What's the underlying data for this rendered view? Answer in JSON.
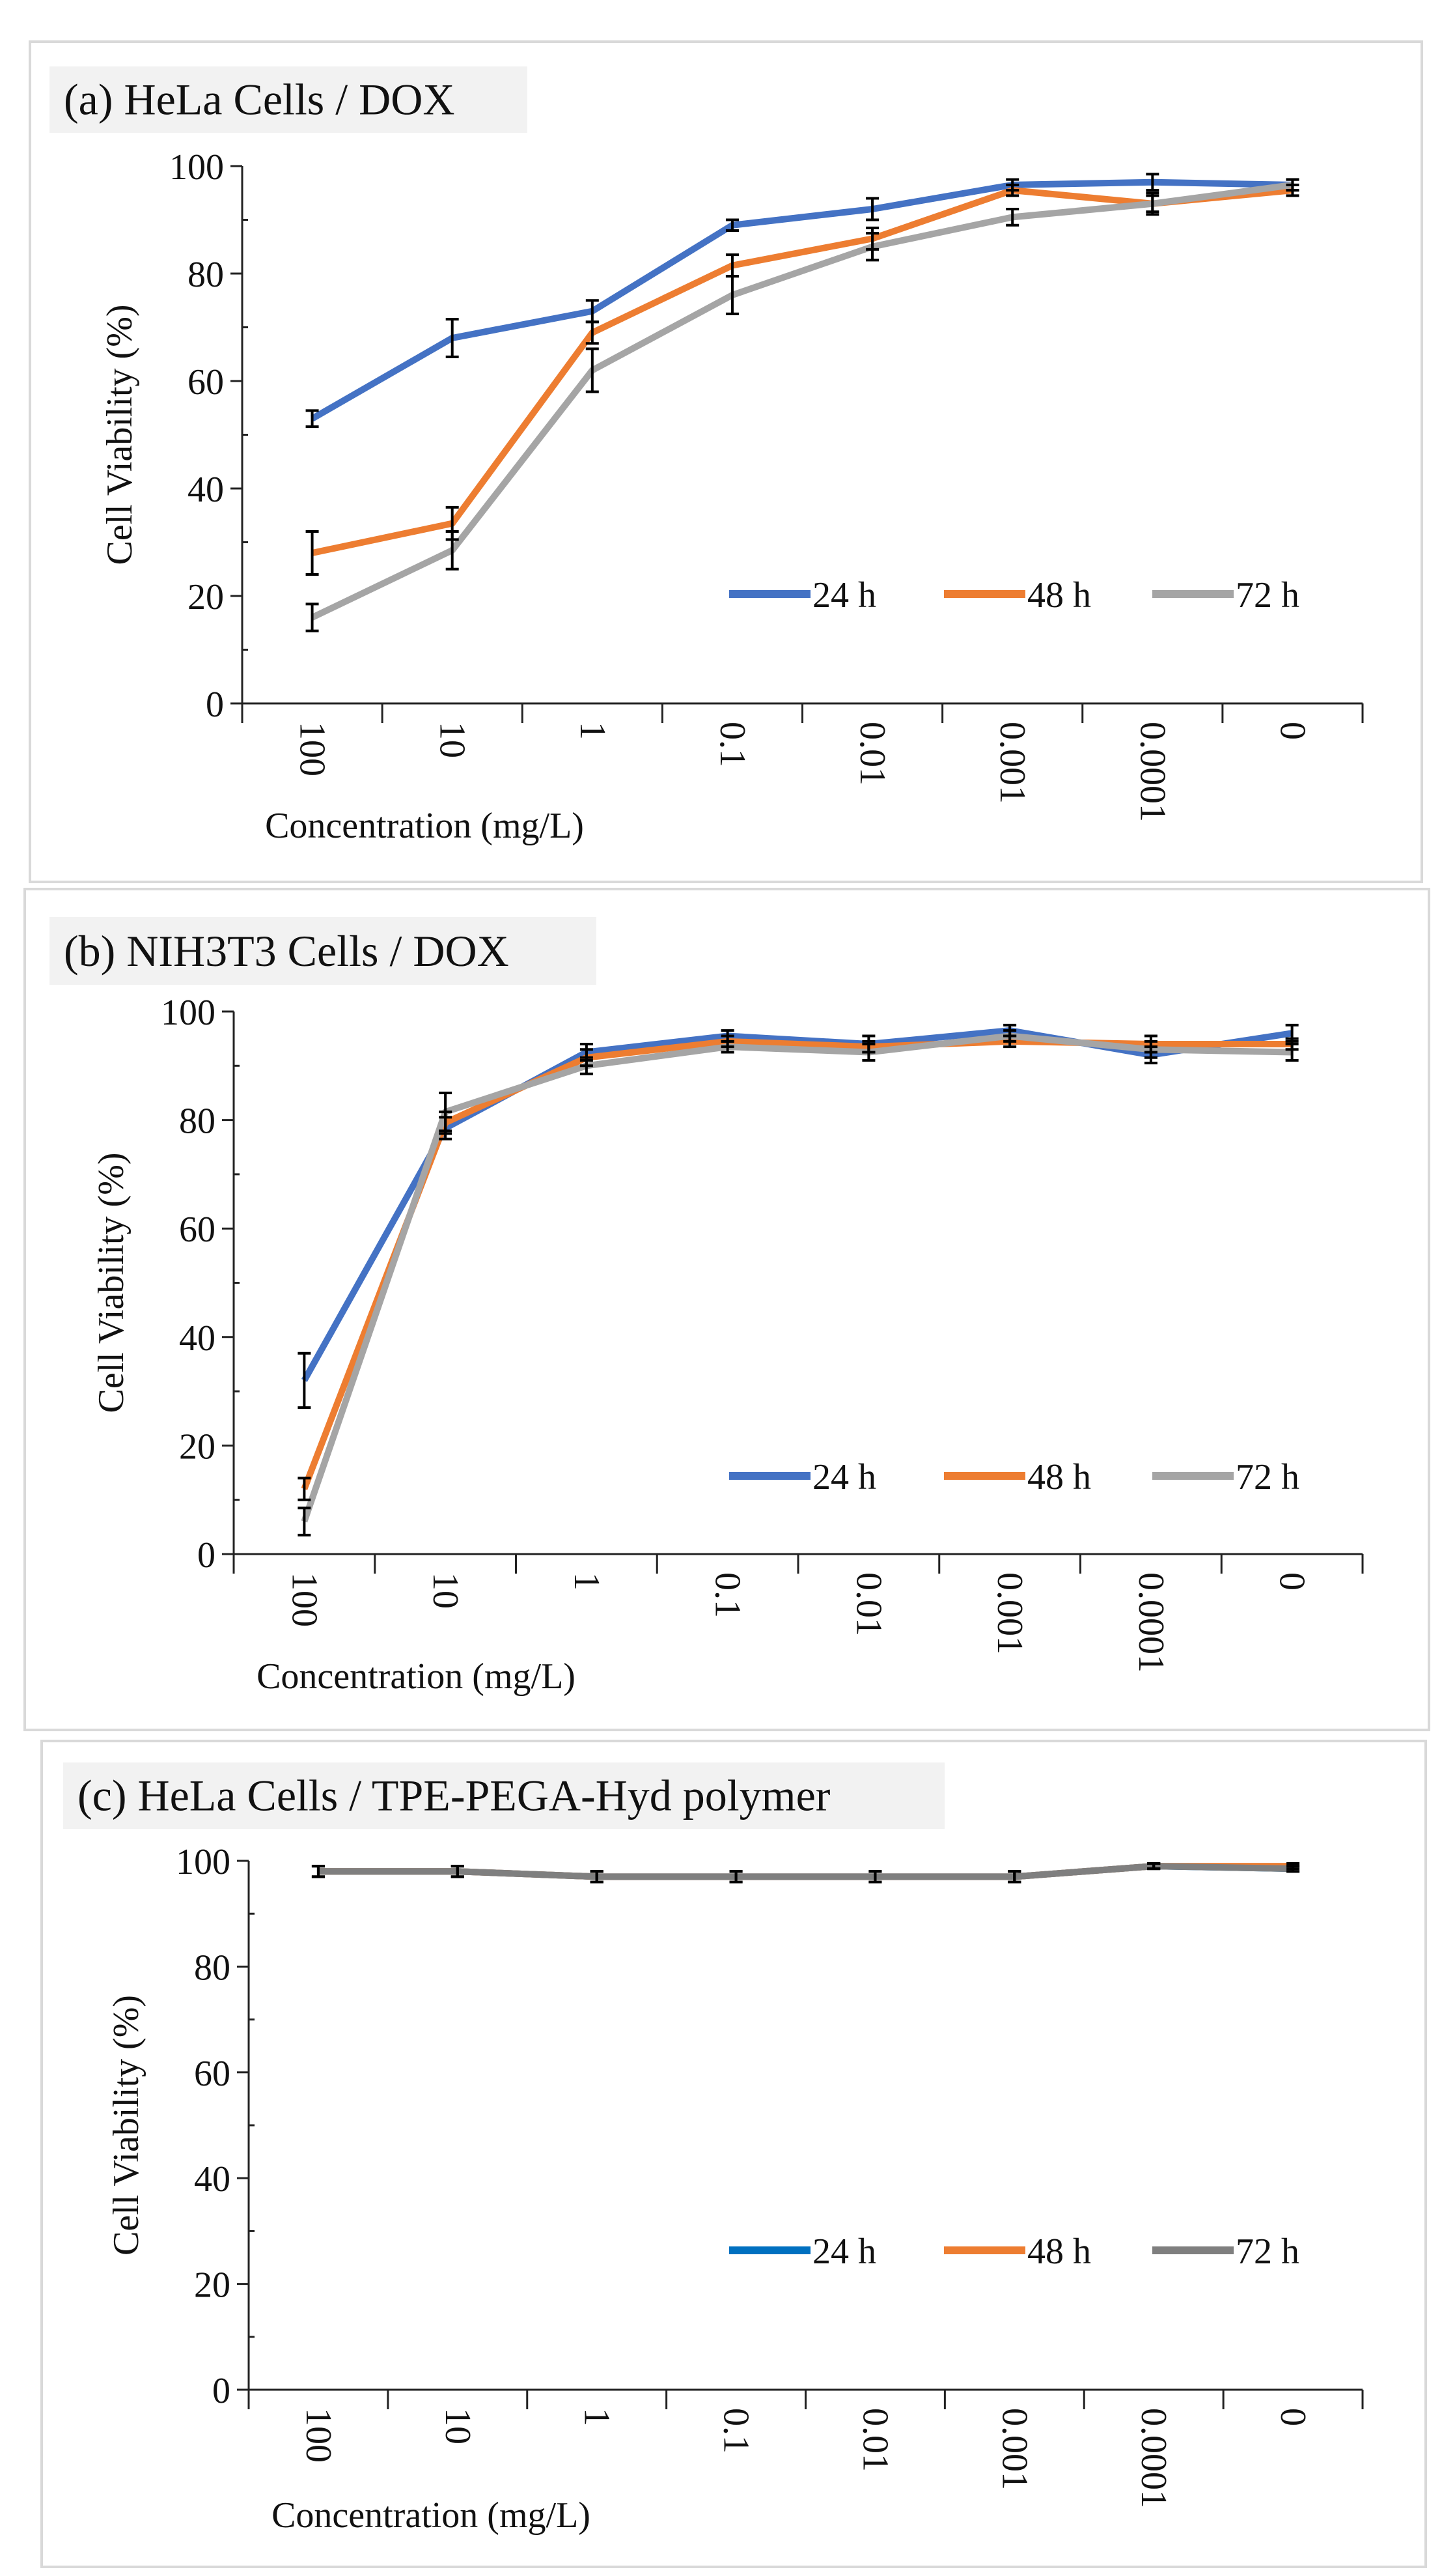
{
  "chart_data": [
    {
      "type": "line",
      "title": "(a) HeLa Cells / DOX",
      "xlabel": "Concentration (mg/L)",
      "ylabel": "Cell Viability (%)",
      "ylim": [
        0,
        100
      ],
      "yticks": [
        0,
        20,
        40,
        60,
        80,
        100
      ],
      "categories": [
        "100",
        "10",
        "1",
        "0.1",
        "0.01",
        "0.001",
        "0.0001",
        "0"
      ],
      "legend_position": "bottom-right",
      "series": [
        {
          "name": "24 h",
          "color": "#4472C4",
          "values": [
            53,
            68,
            73,
            89,
            92,
            96.5,
            97,
            96.5
          ],
          "errors": [
            1.5,
            3.5,
            2,
            1,
            2,
            1,
            1.5,
            1
          ]
        },
        {
          "name": "48 h",
          "color": "#ED7D31",
          "values": [
            28,
            33.5,
            69,
            81.5,
            86.5,
            95.5,
            93,
            95.5
          ],
          "errors": [
            4,
            3,
            2,
            2,
            2,
            1,
            1.5,
            1
          ]
        },
        {
          "name": "72 h",
          "color": "#A5A5A5",
          "values": [
            16,
            28.5,
            62,
            76,
            85,
            90.5,
            93,
            96.5
          ],
          "errors": [
            2.5,
            3.5,
            4,
            3.5,
            2.5,
            1.5,
            2,
            1
          ]
        }
      ]
    },
    {
      "type": "line",
      "title": "(b) NIH3T3 Cells / DOX",
      "xlabel": "Concentration (mg/L)",
      "ylabel": "Cell Viability (%)",
      "ylim": [
        0,
        100
      ],
      "yticks": [
        0,
        20,
        40,
        60,
        80,
        100
      ],
      "categories": [
        "100",
        "10",
        "1",
        "0.1",
        "0.01",
        "0.001",
        "0.0001",
        "0"
      ],
      "legend_position": "bottom-right",
      "series": [
        {
          "name": "24 h",
          "color": "#4472C4",
          "values": [
            32,
            78.5,
            92.5,
            95.5,
            94,
            96.5,
            92,
            96
          ],
          "errors": [
            5,
            2,
            1.5,
            1,
            1.5,
            1,
            1.5,
            1.5
          ]
        },
        {
          "name": "48 h",
          "color": "#ED7D31",
          "values": [
            12,
            79.5,
            91.5,
            94.5,
            93.5,
            94.5,
            94,
            94
          ],
          "errors": [
            2,
            2,
            1.5,
            1,
            1,
            1,
            1.5,
            1
          ]
        },
        {
          "name": "72 h",
          "color": "#A5A5A5",
          "values": [
            6,
            81.5,
            90,
            93.5,
            92.5,
            95.5,
            93,
            92.5
          ],
          "errors": [
            2.5,
            3.5,
            1.5,
            1,
            1.5,
            1,
            1.5,
            1.5
          ]
        }
      ]
    },
    {
      "type": "line",
      "title": "(c) HeLa Cells / TPE-PEGA-Hyd polymer",
      "xlabel": "Concentration (mg/L)",
      "ylabel": "Cell Viability (%)",
      "ylim": [
        0,
        100
      ],
      "yticks": [
        0,
        20,
        40,
        60,
        80,
        100
      ],
      "categories": [
        "100",
        "10",
        "1",
        "0.1",
        "0.01",
        "0.001",
        "0.0001",
        "0"
      ],
      "legend_position": "bottom-right",
      "series": [
        {
          "name": "24 h",
          "color": "#0070C0",
          "values": [
            98,
            98,
            97,
            97,
            97,
            97,
            99,
            98.5
          ],
          "errors": [
            1,
            1,
            1,
            1,
            1,
            1,
            0.5,
            0.5
          ]
        },
        {
          "name": "48 h",
          "color": "#ED7D31",
          "values": [
            98,
            98,
            97,
            97,
            97,
            97,
            99,
            99
          ],
          "errors": [
            1,
            1,
            1,
            1,
            1,
            1,
            0.5,
            0.5
          ]
        },
        {
          "name": "72 h",
          "color": "#7F7F7F",
          "values": [
            98,
            98,
            97,
            97,
            97,
            97,
            99,
            98.5
          ],
          "errors": [
            1,
            1,
            1,
            1,
            1,
            1,
            0.5,
            0.5
          ]
        }
      ]
    }
  ]
}
